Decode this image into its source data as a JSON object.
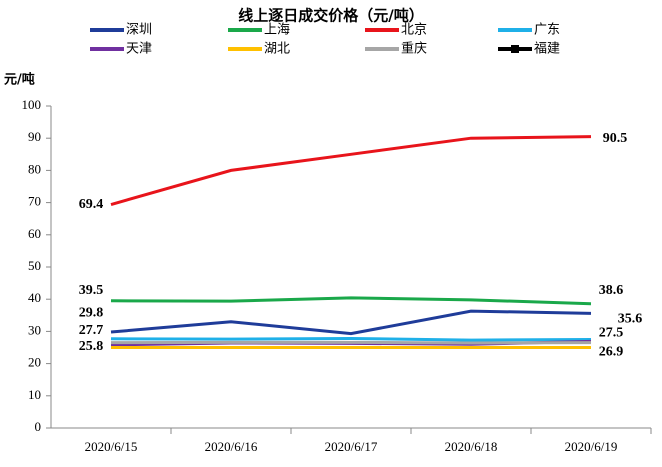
{
  "chart_data": {
    "type": "line",
    "title": "线上逐日成交价格（元/吨）",
    "y_label": "元/吨",
    "categories": [
      "2020/6/15",
      "2020/6/16",
      "2020/6/17",
      "2020/6/18",
      "2020/6/19"
    ],
    "ylim": [
      0,
      100
    ],
    "yticks": [
      0,
      10,
      20,
      30,
      40,
      50,
      60,
      70,
      80,
      90,
      100
    ],
    "grid": false,
    "series": [
      {
        "name": "深圳",
        "color": "#1f3c99",
        "values": [
          29.8,
          33,
          29.3,
          36.3,
          35.6
        ],
        "value_labels": [
          "29.8",
          null,
          null,
          null,
          "35.6"
        ]
      },
      {
        "name": "上海",
        "color": "#1aa84a",
        "values": [
          39.5,
          39.4,
          40.4,
          39.8,
          38.6
        ],
        "value_labels": [
          "39.5",
          null,
          null,
          null,
          "38.6"
        ]
      },
      {
        "name": "北京",
        "color": "#e8141b",
        "values": [
          69.4,
          80,
          85,
          90,
          90.5
        ],
        "value_labels": [
          "69.4",
          null,
          null,
          null,
          "90.5"
        ]
      },
      {
        "name": "广东",
        "color": "#1fb0e8",
        "values": [
          27.7,
          27.6,
          27.8,
          27.3,
          27.5
        ],
        "value_labels": [
          "27.7",
          null,
          null,
          null,
          "27.5"
        ]
      },
      {
        "name": "天津",
        "color": "#7030a0",
        "values": [
          25.8,
          26.4,
          26.3,
          26.0,
          26.9
        ],
        "value_labels": [
          "25.8",
          null,
          null,
          null,
          "26.9"
        ]
      },
      {
        "name": "湖北",
        "color": "#ffc000",
        "values": [
          25,
          25,
          25,
          25,
          25
        ]
      },
      {
        "name": "重庆",
        "color": "#a6a6a6",
        "values": [
          26.5,
          26.6,
          26.6,
          26.4,
          26.5
        ]
      },
      {
        "name": "福建",
        "color": "#000000",
        "values": [
          null,
          null,
          null,
          null,
          null
        ],
        "marker": "square"
      }
    ]
  }
}
